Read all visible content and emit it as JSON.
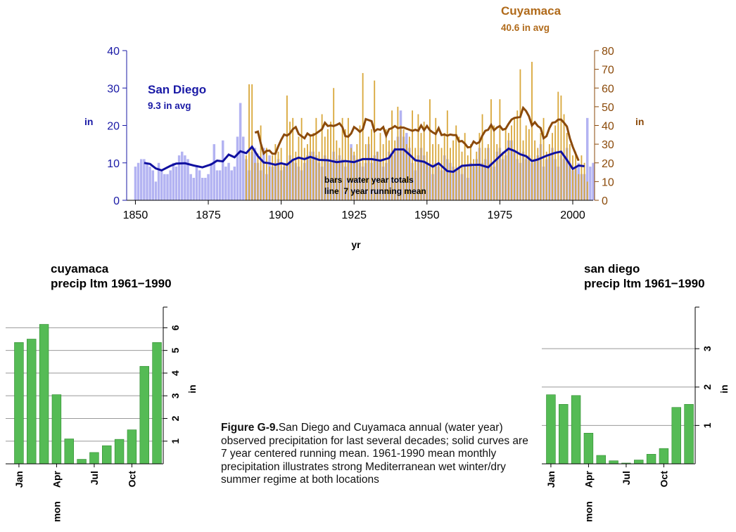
{
  "caption": {
    "label": "Figure G-9.",
    "text": "San Diego and Cuyamaca annual (water year) observed precipitation for last several decades; solid curves are 7 year centered running mean. 1961-1990  mean monthly precipitation illustrates strong Mediterranean wet winter/dry summer regime at both locations"
  },
  "chart_data": [
    {
      "type": "bar",
      "xlabel": "yr",
      "xlim": [
        1847,
        2007
      ],
      "x_ticks": [
        "1850",
        "1875",
        "1900",
        "1925",
        "1950",
        "1975",
        "2000"
      ],
      "annotation": [
        "bars  water year totals",
        "line  7 year running mean"
      ],
      "grid": false,
      "axes": {
        "left": {
          "label": "in",
          "ylim": [
            0,
            40
          ],
          "ticks": [
            "0",
            "10",
            "20",
            "30",
            "40"
          ],
          "color": "#1a1aa6"
        },
        "right": {
          "label": "in",
          "ylim": [
            0,
            80
          ],
          "ticks": [
            "0",
            "10",
            "20",
            "30",
            "40",
            "50",
            "60",
            "70",
            "80"
          ],
          "color": "#8b4a0a"
        }
      },
      "series": [
        {
          "name": "San Diego",
          "subtitle": "9.3 in avg",
          "axis": "left",
          "bar_color": "#b3b3f2",
          "line_color": "#1010a0",
          "start_year": 1850,
          "values": [
            9,
            10,
            11,
            11,
            10,
            9,
            8,
            5,
            10,
            8,
            7,
            7,
            8,
            10,
            9,
            12,
            13,
            12,
            11,
            7,
            6,
            9,
            8,
            6,
            6,
            7,
            10,
            15,
            8,
            8,
            16,
            9,
            10,
            8,
            9,
            17,
            26,
            17,
            11,
            8,
            13,
            14,
            10,
            8,
            14,
            7,
            12,
            9,
            10,
            11,
            8,
            9,
            10,
            12,
            11,
            10,
            9,
            8,
            10,
            12,
            13,
            13,
            12,
            10,
            9,
            12,
            11,
            10,
            13,
            11,
            12,
            11,
            9,
            10,
            15,
            12,
            11,
            10,
            9,
            10,
            15,
            10,
            12,
            13,
            11,
            9,
            10,
            13,
            12,
            14,
            17,
            24,
            17,
            18,
            14,
            10,
            8,
            12,
            14,
            12,
            10,
            9,
            7,
            10,
            9,
            8,
            12,
            11,
            10,
            9,
            8,
            9,
            7,
            9,
            6,
            10,
            9,
            11,
            14,
            10,
            11,
            14,
            10,
            9,
            13,
            14,
            11,
            12,
            16,
            16,
            13,
            11,
            10,
            13,
            11,
            12,
            10,
            11,
            12,
            15,
            9,
            11,
            12,
            14,
            11,
            9,
            12,
            11,
            14,
            10,
            8,
            9,
            10,
            7,
            7,
            22,
            9,
            10
          ],
          "running_mean": [
            [
              1853,
              10
            ],
            [
              1855,
              9.7
            ],
            [
              1857,
              8.5
            ],
            [
              1859,
              8
            ],
            [
              1862,
              9.2
            ],
            [
              1864,
              9.8
            ],
            [
              1867,
              9.9
            ],
            [
              1870,
              9.3
            ],
            [
              1873,
              8.8
            ],
            [
              1876,
              9.6
            ],
            [
              1878,
              10.6
            ],
            [
              1880,
              10.4
            ],
            [
              1882,
              12.2
            ],
            [
              1884,
              11.5
            ],
            [
              1886,
              13.1
            ],
            [
              1888,
              12.6
            ],
            [
              1890,
              14.3
            ],
            [
              1892,
              11.8
            ],
            [
              1894,
              10.1
            ],
            [
              1896,
              9.9
            ],
            [
              1898,
              9.5
            ],
            [
              1900,
              9.9
            ],
            [
              1902,
              9.5
            ],
            [
              1904,
              10.8
            ],
            [
              1906,
              11.4
            ],
            [
              1908,
              11
            ],
            [
              1910,
              11.6
            ],
            [
              1913,
              10.8
            ],
            [
              1916,
              10.7
            ],
            [
              1919,
              10.2
            ],
            [
              1922,
              10.5
            ],
            [
              1925,
              10.2
            ],
            [
              1928,
              11
            ],
            [
              1931,
              11
            ],
            [
              1934,
              10.6
            ],
            [
              1937,
              11.3
            ],
            [
              1939,
              13.6
            ],
            [
              1942,
              13.6
            ],
            [
              1944,
              12.2
            ],
            [
              1946,
              10.7
            ],
            [
              1949,
              10.3
            ],
            [
              1952,
              9
            ],
            [
              1954,
              9.9
            ],
            [
              1957,
              7.8
            ],
            [
              1959,
              7.6
            ],
            [
              1962,
              9.2
            ],
            [
              1965,
              9.4
            ],
            [
              1968,
              9.5
            ],
            [
              1971,
              8.8
            ],
            [
              1973,
              10.3
            ],
            [
              1976,
              12.5
            ],
            [
              1978,
              13.8
            ],
            [
              1980,
              13.2
            ],
            [
              1982,
              12.3
            ],
            [
              1984,
              11.8
            ],
            [
              1986,
              10.5
            ],
            [
              1988,
              10.9
            ],
            [
              1991,
              11.9
            ],
            [
              1994,
              12.7
            ],
            [
              1996,
              13
            ],
            [
              1998,
              10.8
            ],
            [
              2000,
              8.4
            ],
            [
              2002,
              9.3
            ],
            [
              2004,
              9.1
            ]
          ]
        },
        {
          "name": "Cuyamaca",
          "subtitle": "40.6 in avg",
          "axis": "right",
          "bar_color": "#d9a83c",
          "line_color": "#8b4a0a",
          "start_year": 1888,
          "values": [
            24,
            62,
            62,
            20,
            25,
            40,
            20,
            28,
            18,
            24,
            30,
            26,
            28,
            20,
            56,
            42,
            44,
            26,
            34,
            44,
            28,
            30,
            34,
            36,
            44,
            26,
            46,
            34,
            38,
            42,
            60,
            32,
            28,
            44,
            38,
            44,
            28,
            26,
            30,
            40,
            68,
            30,
            34,
            38,
            64,
            26,
            36,
            30,
            38,
            32,
            48,
            32,
            50,
            40,
            38,
            30,
            34,
            48,
            28,
            46,
            36,
            42,
            26,
            54,
            30,
            44,
            30,
            28,
            36,
            48,
            28,
            32,
            40,
            34,
            26,
            36,
            24,
            30,
            22,
            26,
            36,
            46,
            28,
            30,
            54,
            40,
            30,
            54,
            26,
            38,
            36,
            40,
            44,
            48,
            70,
            32,
            40,
            38,
            74,
            32,
            28,
            36,
            44,
            26,
            30,
            36,
            40,
            58,
            56,
            46,
            36,
            30,
            24,
            26,
            14,
            24,
            20,
            10
          ]
        }
      ]
    },
    {
      "type": "bar",
      "title": [
        "cuyamaca",
        "precip ltm 1961−1990"
      ],
      "xlabel": "mon",
      "ylabel": "in",
      "bar_color": "#55bb55",
      "ylim": [
        0,
        6.6
      ],
      "y_ticks": [
        "1",
        "2",
        "3",
        "4",
        "5",
        "6"
      ],
      "grid": true,
      "x_tick_labels": [
        "Jan",
        "Apr",
        "Jul",
        "Oct"
      ],
      "categories": [
        "Jan",
        "Feb",
        "Mar",
        "Apr",
        "May",
        "Jun",
        "Jul",
        "Aug",
        "Sep",
        "Oct",
        "Nov",
        "Dec"
      ],
      "values": [
        5.35,
        5.5,
        6.15,
        3.05,
        1.1,
        0.2,
        0.5,
        0.8,
        1.08,
        1.5,
        4.3,
        5.35
      ]
    },
    {
      "type": "bar",
      "title": [
        "san diego",
        "precip ltm 1961−1990"
      ],
      "xlabel": "mon",
      "ylabel": "in",
      "bar_color": "#55bb55",
      "ylim": [
        0,
        3.9
      ],
      "y_ticks": [
        "1",
        "2",
        "3"
      ],
      "grid": true,
      "x_tick_labels": [
        "Jan",
        "Apr",
        "Jul",
        "Oct"
      ],
      "categories": [
        "Jan",
        "Feb",
        "Mar",
        "Apr",
        "May",
        "Jun",
        "Jul",
        "Aug",
        "Sep",
        "Oct",
        "Nov",
        "Dec"
      ],
      "values": [
        1.8,
        1.55,
        1.78,
        0.8,
        0.22,
        0.08,
        0.02,
        0.1,
        0.25,
        0.4,
        1.47,
        1.55
      ]
    }
  ]
}
